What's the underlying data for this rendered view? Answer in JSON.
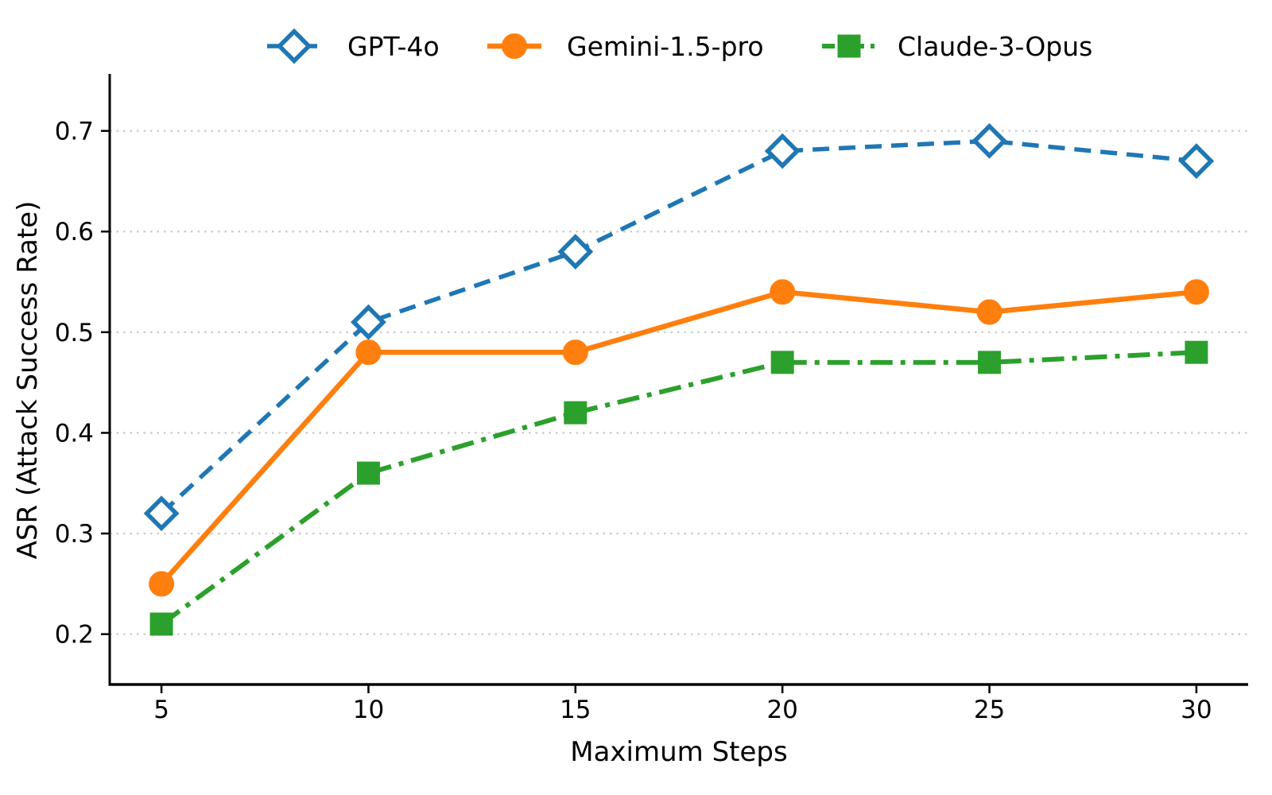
{
  "chart_data": {
    "type": "line",
    "title": "",
    "xlabel": "Maximum Steps",
    "ylabel": "ASR (Attack Success Rate)",
    "x": [
      5,
      10,
      15,
      20,
      25,
      30
    ],
    "xticks": [
      5,
      10,
      15,
      20,
      25,
      30
    ],
    "yticks": [
      0.2,
      0.3,
      0.4,
      0.5,
      0.6,
      0.7
    ],
    "xlim": [
      3.75,
      31.25
    ],
    "ylim": [
      0.15,
      0.755
    ],
    "grid": "horizontal-dotted",
    "legend_position": "top-outside",
    "series": [
      {
        "name": "GPT-4o",
        "values": [
          0.32,
          0.51,
          0.58,
          0.68,
          0.69,
          0.67
        ],
        "color": "#1f77b4",
        "linestyle": "dashed",
        "marker": "diamond",
        "marker_fill": "#ffffff"
      },
      {
        "name": "Gemini-1.5-pro",
        "values": [
          0.25,
          0.48,
          0.48,
          0.54,
          0.52,
          0.54
        ],
        "color": "#ff7f0e",
        "linestyle": "solid",
        "marker": "circle",
        "marker_fill": "#ff7f0e"
      },
      {
        "name": "Claude-3-Opus",
        "values": [
          0.21,
          0.36,
          0.42,
          0.47,
          0.47,
          0.48
        ],
        "color": "#2ca02c",
        "linestyle": "dashdot",
        "marker": "square",
        "marker_fill": "#2ca02c"
      }
    ],
    "colors": {
      "background": "#ffffff",
      "grid": "#c9c9c9",
      "axis": "#000000",
      "tick_label": "#000000"
    }
  }
}
